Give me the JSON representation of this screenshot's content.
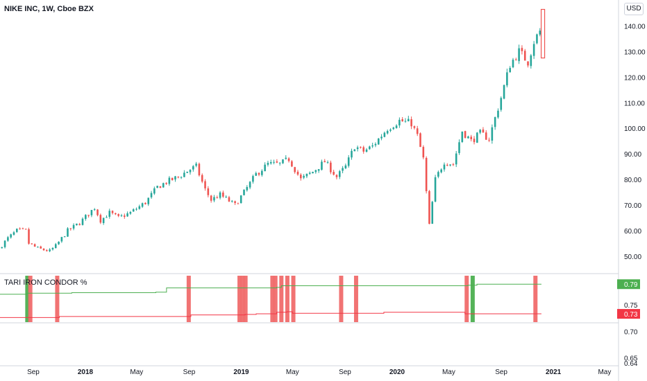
{
  "symbol": {
    "title": "NIKE INC, 1W, Cboe BZX"
  },
  "currency_button": "USD",
  "indicator": {
    "title": "TARI IRON CONDOR %"
  },
  "colors": {
    "up": "#26a69a",
    "down": "#ef5350",
    "green_line": "#4caf50",
    "red_line": "#f23645",
    "green_badge": "#4caf50",
    "red_badge": "#f23645",
    "grid": "#e0e3eb"
  },
  "x_axis": {
    "labels": [
      {
        "text": "Sep",
        "date": "2017-09-01"
      },
      {
        "text": "2018",
        "date": "2018-01-01"
      },
      {
        "text": "May",
        "date": "2018-05-01"
      },
      {
        "text": "Sep",
        "date": "2018-09-01"
      },
      {
        "text": "2019",
        "date": "2019-01-01"
      },
      {
        "text": "May",
        "date": "2019-05-01"
      },
      {
        "text": "Sep",
        "date": "2019-09-01"
      },
      {
        "text": "2020",
        "date": "2020-01-01"
      },
      {
        "text": "May",
        "date": "2020-05-01"
      },
      {
        "text": "Sep",
        "date": "2020-09-01"
      },
      {
        "text": "2021",
        "date": "2021-01-01"
      },
      {
        "text": "May",
        "date": "2021-05-01"
      }
    ]
  },
  "chart_data": [
    {
      "type": "candlestick",
      "title": "NIKE INC, 1W, Cboe BZX",
      "ylabel": "USD",
      "ylim": [
        44,
        148
      ],
      "y_ticks": [
        "140.00",
        "130.00",
        "120.00",
        "110.00",
        "100.00",
        "90.00",
        "80.00",
        "70.00",
        "60.00",
        "50.00"
      ],
      "x_range": [
        "2017-06-15",
        "2021-06-01"
      ],
      "anchors": [
        [
          "2017-06-16",
          53
        ],
        [
          "2017-07-07",
          57
        ],
        [
          "2017-07-28",
          60
        ],
        [
          "2017-08-18",
          60
        ],
        [
          "2017-08-25",
          55
        ],
        [
          "2017-09-15",
          53
        ],
        [
          "2017-10-13",
          52
        ],
        [
          "2017-10-27",
          54
        ],
        [
          "2017-11-24",
          60
        ],
        [
          "2017-12-22",
          63
        ],
        [
          "2018-01-26",
          69
        ],
        [
          "2018-02-09",
          64
        ],
        [
          "2018-03-02",
          67
        ],
        [
          "2018-03-23",
          65
        ],
        [
          "2018-04-20",
          67
        ],
        [
          "2018-05-25",
          71
        ],
        [
          "2018-06-22",
          77
        ],
        [
          "2018-07-13",
          79
        ],
        [
          "2018-08-10",
          81
        ],
        [
          "2018-09-07",
          84
        ],
        [
          "2018-09-21",
          85
        ],
        [
          "2018-10-12",
          76
        ],
        [
          "2018-10-26",
          72
        ],
        [
          "2018-11-16",
          74
        ],
        [
          "2018-12-21",
          70
        ],
        [
          "2019-01-11",
          75
        ],
        [
          "2019-02-08",
          82
        ],
        [
          "2019-03-08",
          86
        ],
        [
          "2019-04-05",
          86
        ],
        [
          "2019-04-26",
          88
        ],
        [
          "2019-05-24",
          80
        ],
        [
          "2019-06-21",
          83
        ],
        [
          "2019-07-19",
          87
        ],
        [
          "2019-08-16",
          81
        ],
        [
          "2019-09-06",
          85
        ],
        [
          "2019-09-27",
          93
        ],
        [
          "2019-10-18",
          91
        ],
        [
          "2019-11-08",
          93
        ],
        [
          "2019-12-13",
          100
        ],
        [
          "2020-01-10",
          103
        ],
        [
          "2020-02-07",
          102
        ],
        [
          "2020-02-21",
          97
        ],
        [
          "2020-03-06",
          88
        ],
        [
          "2020-03-20",
          62
        ],
        [
          "2020-04-03",
          80
        ],
        [
          "2020-04-24",
          87
        ],
        [
          "2020-05-15",
          86
        ],
        [
          "2020-06-05",
          99
        ],
        [
          "2020-06-26",
          95
        ],
        [
          "2020-07-17",
          98
        ],
        [
          "2020-08-07",
          96
        ],
        [
          "2020-09-04",
          112
        ],
        [
          "2020-09-25",
          125
        ],
        [
          "2020-10-16",
          130
        ],
        [
          "2020-11-06",
          126
        ],
        [
          "2020-11-20",
          134
        ],
        [
          "2020-12-04",
          138
        ]
      ],
      "last_candle": {
        "date": "2020-12-04",
        "low": 127.5,
        "high": 146.5,
        "open": 128,
        "close": 146
      }
    },
    {
      "type": "line",
      "title": "TARI IRON CONDOR %",
      "ylim": [
        0.635,
        0.805
      ],
      "y_ticks": [
        "0.75",
        "0.70",
        "0.65",
        "0.64"
      ],
      "series": [
        {
          "color": "green",
          "last_value": "0.79",
          "steps": [
            [
              "2017-06-15",
              0.77
            ],
            [
              "2017-08-17",
              0.772
            ],
            [
              "2017-11-30",
              0.773
            ],
            [
              "2018-06-15",
              0.774
            ],
            [
              "2018-07-10",
              0.782
            ],
            [
              "2019-03-25",
              0.783
            ],
            [
              "2019-04-05",
              0.786
            ],
            [
              "2020-06-15",
              0.787
            ],
            [
              "2020-07-06",
              0.789
            ],
            [
              "2020-12-04",
              0.789
            ]
          ]
        },
        {
          "color": "red",
          "last_value": "0.73",
          "steps": [
            [
              "2017-06-15",
              0.726
            ],
            [
              "2017-11-01",
              0.728
            ],
            [
              "2018-09-05",
              0.731
            ],
            [
              "2019-01-10",
              0.732
            ],
            [
              "2019-02-05",
              0.733
            ],
            [
              "2019-03-25",
              0.736
            ],
            [
              "2019-04-18",
              0.737
            ],
            [
              "2019-05-01",
              0.734
            ],
            [
              "2019-12-01",
              0.736
            ],
            [
              "2020-06-08",
              0.733
            ],
            [
              "2020-12-04",
              0.733
            ]
          ]
        }
      ],
      "signal_bars": [
        {
          "date": "2017-08-18",
          "color": "green"
        },
        {
          "date": "2017-08-25",
          "color": "red"
        },
        {
          "date": "2017-10-27",
          "color": "red"
        },
        {
          "date": "2018-08-31",
          "color": "red"
        },
        {
          "date": "2018-12-28",
          "color": "red"
        },
        {
          "date": "2019-01-04",
          "color": "red"
        },
        {
          "date": "2019-01-11",
          "color": "red"
        },
        {
          "date": "2019-03-15",
          "color": "red"
        },
        {
          "date": "2019-03-22",
          "color": "red"
        },
        {
          "date": "2019-04-05",
          "color": "red"
        },
        {
          "date": "2019-04-19",
          "color": "red"
        },
        {
          "date": "2019-05-03",
          "color": "red"
        },
        {
          "date": "2019-08-23",
          "color": "red"
        },
        {
          "date": "2019-09-27",
          "color": "red"
        },
        {
          "date": "2020-06-12",
          "color": "red"
        },
        {
          "date": "2020-06-26",
          "color": "green"
        },
        {
          "date": "2020-11-20",
          "color": "red"
        }
      ]
    }
  ]
}
